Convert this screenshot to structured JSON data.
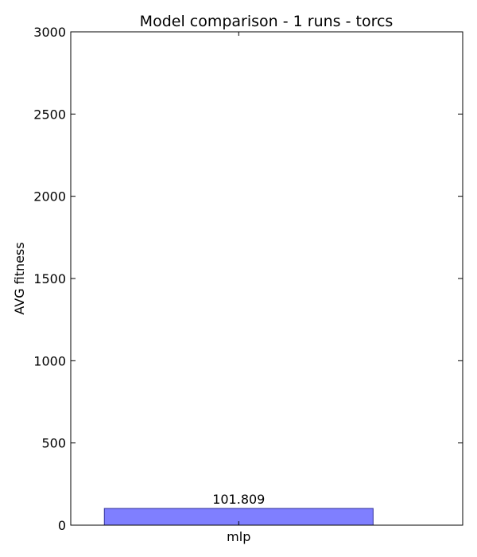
{
  "chart_data": {
    "type": "bar",
    "title": "Model comparison - 1 runs - torcs",
    "xlabel": "",
    "ylabel": "AVG fitness",
    "categories": [
      "mlp"
    ],
    "values": [
      101.809
    ],
    "data_labels": [
      "101.809"
    ],
    "ylim": [
      0,
      3000
    ],
    "yticks": [
      0,
      500,
      1000,
      1500,
      2000,
      2500,
      3000
    ],
    "grid": false,
    "legend": "none",
    "bar_color": "#7f7fff",
    "bar_edge_color": "#333399"
  }
}
